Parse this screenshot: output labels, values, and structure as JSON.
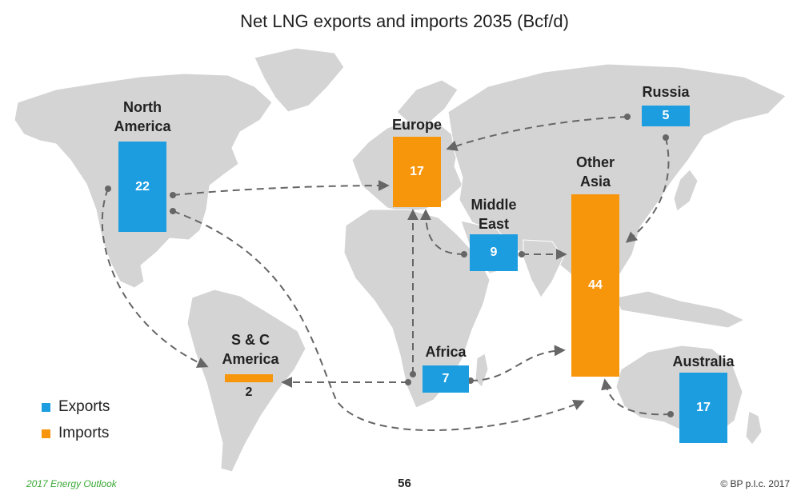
{
  "chart_data": {
    "type": "flow-map",
    "title": "Net LNG exports and imports 2035 (Bcf/d)",
    "regions": [
      {
        "id": "north-america",
        "label": "North\nAmerica",
        "kind": "export",
        "value": 22
      },
      {
        "id": "europe",
        "label": "Europe",
        "kind": "import",
        "value": 17
      },
      {
        "id": "russia",
        "label": "Russia",
        "kind": "export",
        "value": 5
      },
      {
        "id": "middle-east",
        "label": "Middle\nEast",
        "kind": "export",
        "value": 9
      },
      {
        "id": "other-asia",
        "label": "Other\nAsia",
        "kind": "import",
        "value": 44
      },
      {
        "id": "africa",
        "label": "Africa",
        "kind": "export",
        "value": 7
      },
      {
        "id": "sc-america",
        "label": "S & C\nAmerica",
        "kind": "import",
        "value": 2
      },
      {
        "id": "australia",
        "label": "Australia",
        "kind": "export",
        "value": 17
      }
    ],
    "flows": [
      {
        "from": "north-america",
        "to": "europe"
      },
      {
        "from": "north-america",
        "to": "sc-america"
      },
      {
        "from": "north-america",
        "to": "other-asia"
      },
      {
        "from": "russia",
        "to": "europe"
      },
      {
        "from": "russia",
        "to": "other-asia"
      },
      {
        "from": "middle-east",
        "to": "europe"
      },
      {
        "from": "middle-east",
        "to": "other-asia"
      },
      {
        "from": "africa",
        "to": "europe"
      },
      {
        "from": "africa",
        "to": "sc-america"
      },
      {
        "from": "africa",
        "to": "other-asia"
      },
      {
        "from": "australia",
        "to": "other-asia"
      }
    ],
    "legend": [
      {
        "label": "Exports",
        "color": "#1c9de0"
      },
      {
        "label": "Imports",
        "color": "#f7950b"
      }
    ]
  },
  "colors": {
    "export": "#1c9de0",
    "import": "#f7950b",
    "land": "#d4d4d4",
    "arrow": "#666666"
  },
  "footer": {
    "source": "2017 Energy Outlook",
    "page": "56",
    "copyright": "© BP p.l.c. 2017"
  }
}
